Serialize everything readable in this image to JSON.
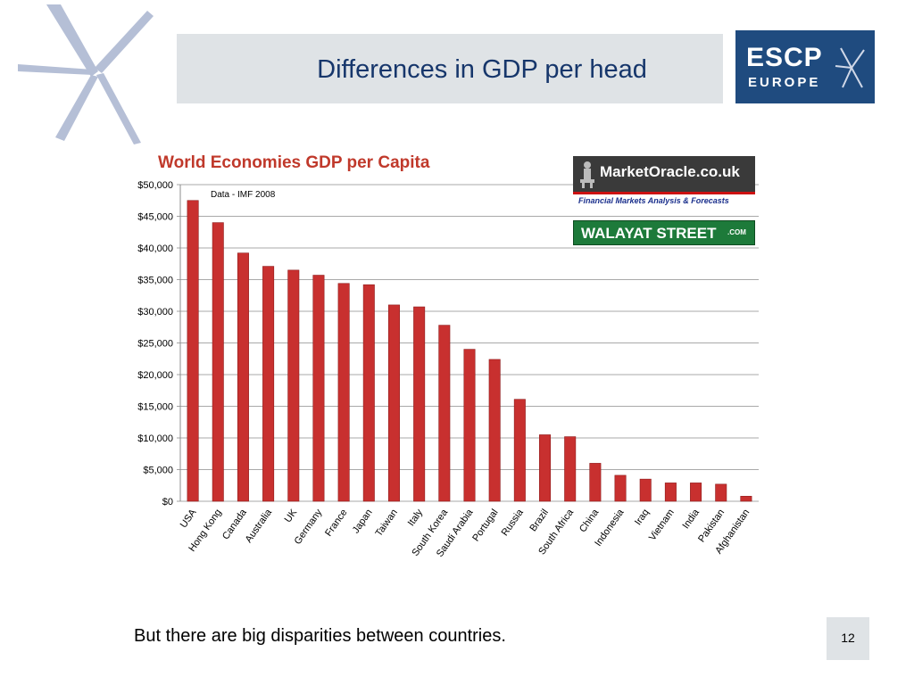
{
  "slide": {
    "title": "Differences in GDP per head",
    "caption": "But there are big disparities between countries.",
    "page_number": "12"
  },
  "logo": {
    "line1": "ESCP",
    "line2": "EUROPE"
  },
  "badges": {
    "market_oracle": {
      "name": "MarketOracle.co.uk",
      "tagline": "Financial Markets Analysis & Forecasts"
    },
    "walayat": {
      "name": "WALAYAT STREET",
      "suffix": ".COM"
    }
  },
  "colors": {
    "title_text": "#16366b",
    "title_band": "#dfe3e6",
    "bar_fill": "#c8302f",
    "chart_title": "#c0392b",
    "logo_bg": "#1f4b7f"
  },
  "chart_data": {
    "type": "bar",
    "title": "World Economies GDP per Capita",
    "annotation": "Data - IMF 2008",
    "xlabel": "",
    "ylabel": "",
    "ylim": [
      0,
      50000
    ],
    "y_ticks": [
      0,
      5000,
      10000,
      15000,
      20000,
      25000,
      30000,
      35000,
      40000,
      45000,
      50000
    ],
    "y_tick_labels": [
      "$0",
      "$5,000",
      "$10,000",
      "$15,000",
      "$20,000",
      "$25,000",
      "$30,000",
      "$35,000",
      "$40,000",
      "$45,000",
      "$50,000"
    ],
    "grid": true,
    "legend": "none",
    "categories": [
      "USA",
      "Hong Kong",
      "Canada",
      "Australia",
      "UK",
      "Germany",
      "France",
      "Japan",
      "Taiwan",
      "Italy",
      "South Korea",
      "Saudi Arabia",
      "Portugal",
      "Russia",
      "Brazil",
      "South Africa",
      "China",
      "Indonesia",
      "Iraq",
      "Vietnam",
      "India",
      "Pakistan",
      "Afghanistan"
    ],
    "values": [
      47500,
      44000,
      39200,
      37100,
      36500,
      35700,
      34400,
      34200,
      31000,
      30700,
      27800,
      24000,
      22400,
      16100,
      10500,
      10200,
      6000,
      4100,
      3500,
      2900,
      2900,
      2700,
      800
    ]
  }
}
